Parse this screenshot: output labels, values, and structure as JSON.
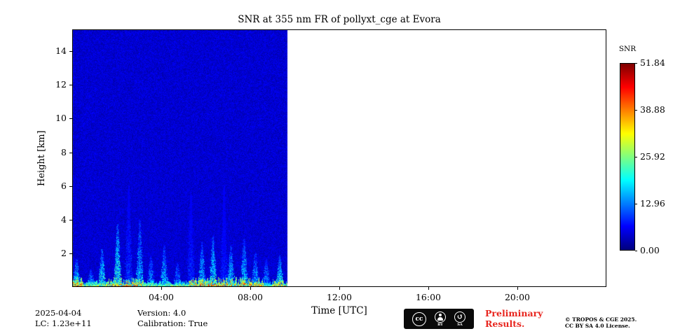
{
  "figure": {
    "title": "SNR at 355 nm FR of pollyxt_cge at Evora"
  },
  "chart_data": {
    "type": "heatmap",
    "title": "SNR at 355 nm FR of pollyxt_cge at Evora",
    "xlabel": "Time [UTC]",
    "ylabel": "Height [km]",
    "x_range_hours": [
      0,
      24
    ],
    "x_major_ticks": [
      {
        "hour": 4,
        "label": "04:00"
      },
      {
        "hour": 8,
        "label": "08:00"
      },
      {
        "hour": 12,
        "label": "12:00"
      },
      {
        "hour": 16,
        "label": "16:00"
      },
      {
        "hour": 20,
        "label": "20:00"
      }
    ],
    "ylim_km": [
      0,
      15.3
    ],
    "y_major_ticks": [
      2,
      4,
      6,
      8,
      10,
      12,
      14
    ],
    "colorbar": {
      "label": "SNR",
      "min": 0,
      "max": 51.84,
      "ticks": [
        0.0,
        12.96,
        25.92,
        38.88,
        51.84
      ],
      "colormap": "jet"
    },
    "coverage_hours": [
      0,
      9.67
    ],
    "no_data": {
      "color": "#ffffff"
    },
    "background": {
      "snr_mean": 4.2,
      "snr_noise": 2.2
    },
    "surface_band": {
      "max_top_km": 0.45,
      "snr_max": 51.84
    },
    "surface_segments": [
      {
        "from": 0.0,
        "to": 0.5,
        "intensity": 1.0
      },
      {
        "from": 0.5,
        "to": 1.5,
        "intensity": 0.6
      },
      {
        "from": 1.5,
        "to": 3.2,
        "intensity": 0.95
      },
      {
        "from": 3.2,
        "to": 5.2,
        "intensity": 0.55
      },
      {
        "from": 5.2,
        "to": 8.6,
        "intensity": 1.0
      },
      {
        "from": 8.6,
        "to": 9.0,
        "intensity": 0.45
      },
      {
        "from": 9.0,
        "to": 9.67,
        "intensity": 0.9
      }
    ],
    "plumes": [
      {
        "hour": 0.15,
        "top_km": 1.6,
        "snr": 26
      },
      {
        "hour": 0.8,
        "top_km": 1.0,
        "snr": 22
      },
      {
        "hour": 1.3,
        "top_km": 2.2,
        "snr": 28
      },
      {
        "hour": 2.0,
        "top_km": 3.7,
        "snr": 30
      },
      {
        "hour": 2.5,
        "top_km": 6.0,
        "snr": 13
      },
      {
        "hour": 3.0,
        "top_km": 4.0,
        "snr": 22
      },
      {
        "hour": 3.5,
        "top_km": 1.8,
        "snr": 20
      },
      {
        "hour": 4.1,
        "top_km": 2.4,
        "snr": 24
      },
      {
        "hour": 4.7,
        "top_km": 1.4,
        "snr": 20
      },
      {
        "hour": 5.3,
        "top_km": 5.5,
        "snr": 12
      },
      {
        "hour": 5.8,
        "top_km": 2.6,
        "snr": 24
      },
      {
        "hour": 6.3,
        "top_km": 3.0,
        "snr": 27
      },
      {
        "hour": 6.8,
        "top_km": 6.0,
        "snr": 11
      },
      {
        "hour": 7.1,
        "top_km": 2.4,
        "snr": 25
      },
      {
        "hour": 7.7,
        "top_km": 2.8,
        "snr": 24
      },
      {
        "hour": 8.2,
        "top_km": 2.0,
        "snr": 23
      },
      {
        "hour": 8.7,
        "top_km": 1.6,
        "snr": 20
      },
      {
        "hour": 9.3,
        "top_km": 1.8,
        "snr": 27
      }
    ]
  },
  "footer": {
    "date": "2025-04-04",
    "lc": "LC: 1.23e+11",
    "version": "Version: 4.0",
    "calibration": "Calibration: True",
    "preliminary_line1": "Preliminary",
    "preliminary_line2": "Results.",
    "copyright_line1": "© TROPOS & CGE 2025.",
    "copyright_line2": "CC BY SA 4.0 License.",
    "badge": {
      "cc": "cc",
      "by": "BY",
      "sa": "SA"
    }
  },
  "colors": {
    "preliminary_red": "#e8261f",
    "axis": "#000000",
    "no_data_white": "#ffffff"
  }
}
